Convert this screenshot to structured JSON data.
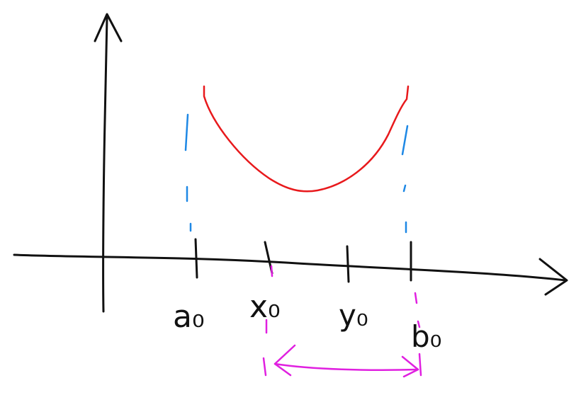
{
  "colors": {
    "background": "#ffffff",
    "axis": "#111111",
    "curve": "#e8191c",
    "guide": "#1e88e5",
    "interval": "#e020e0"
  },
  "labels": {
    "a0": "a₀",
    "x0": "x₀",
    "y0": "y₀",
    "b0": "b₀"
  }
}
